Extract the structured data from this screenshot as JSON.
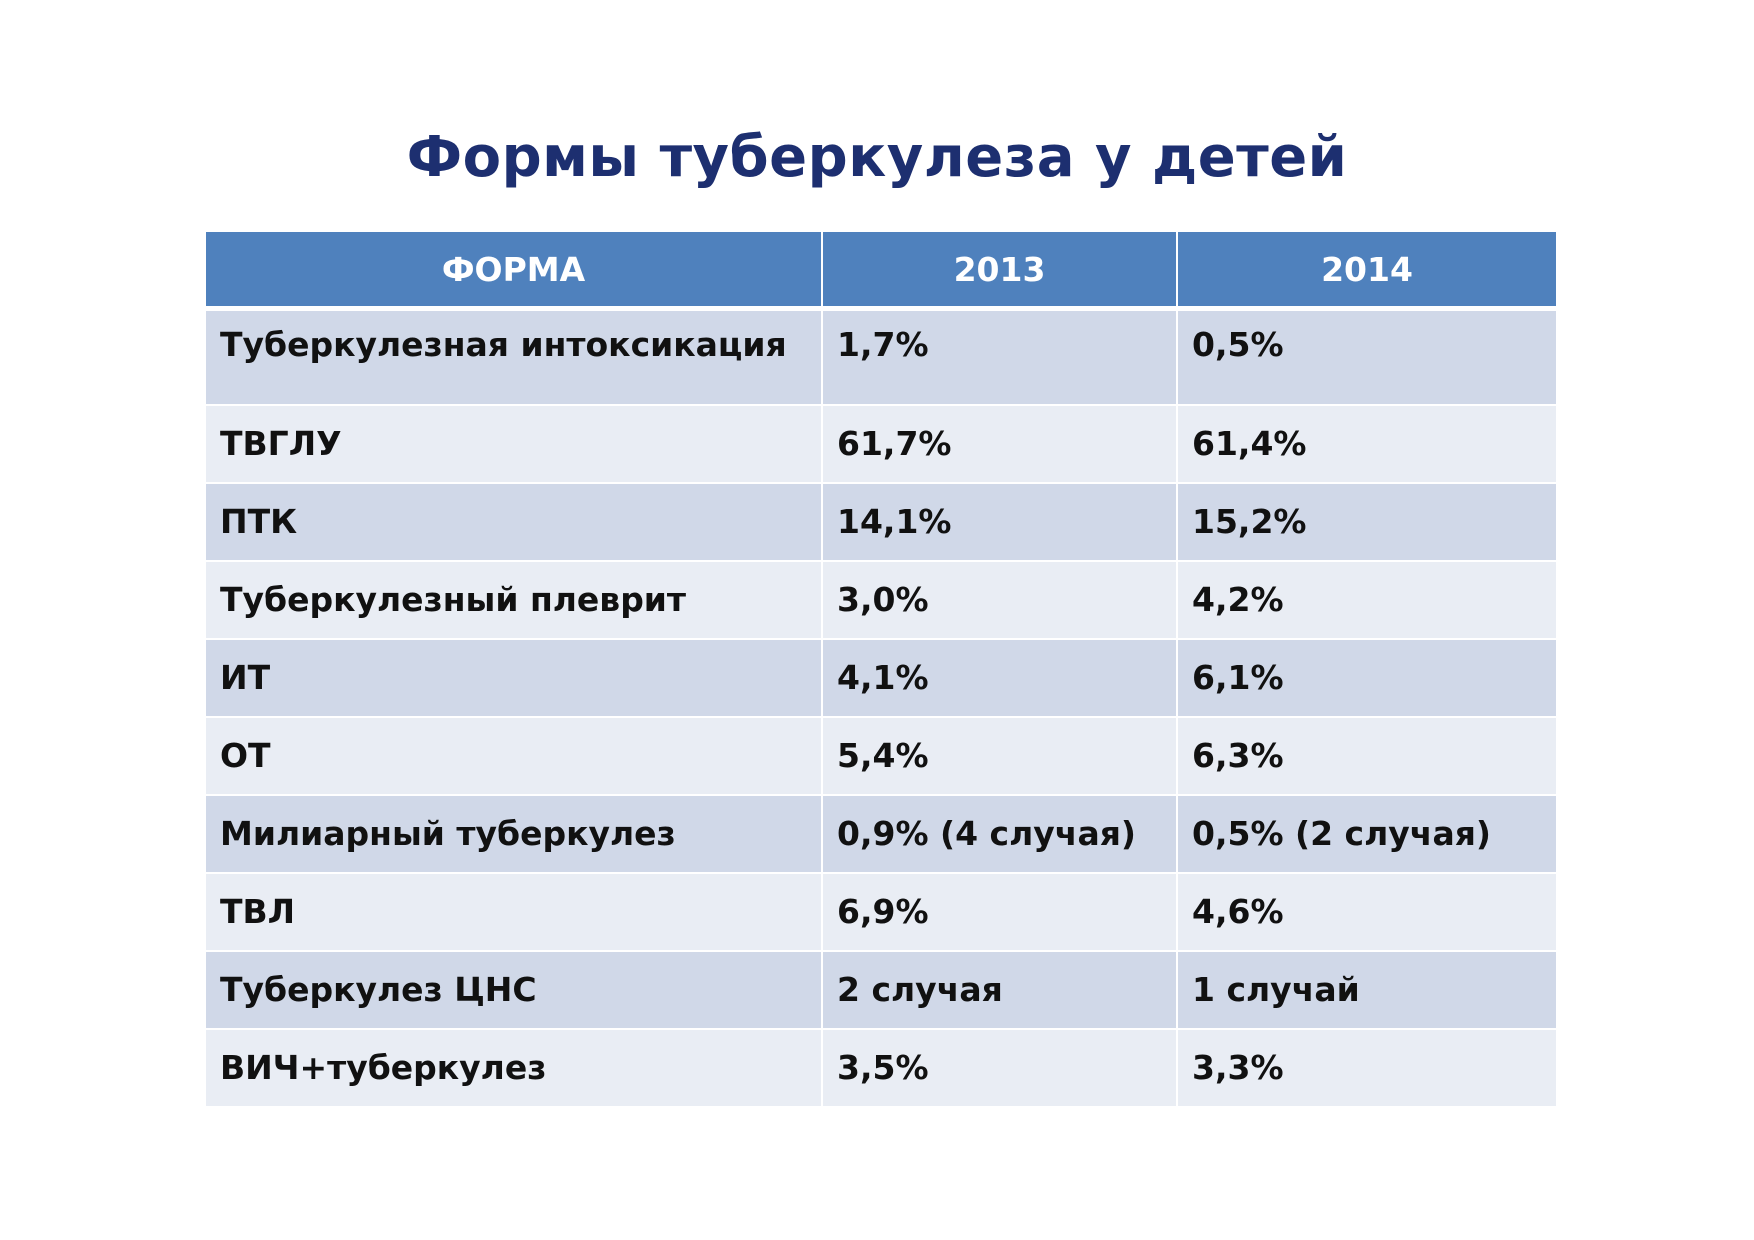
{
  "title": "Формы туберкулеза у детей",
  "table": {
    "headers": [
      "ФОРМА",
      "2013",
      "2014"
    ],
    "rows": [
      [
        "Туберкулезная интоксикация",
        "1,7%",
        "0,5%"
      ],
      [
        "ТВГЛУ",
        "61,7%",
        "61,4%"
      ],
      [
        "ПТК",
        "14,1%",
        "15,2%"
      ],
      [
        "Туберкулезный плеврит",
        "3,0%",
        "4,2%"
      ],
      [
        "ИТ",
        "4,1%",
        "6,1%"
      ],
      [
        "ОТ",
        "5,4%",
        "6,3%"
      ],
      [
        "Милиарный туберкулез",
        "0,9% (4 случая)",
        "0,5% (2 случая)"
      ],
      [
        "ТВЛ",
        "6,9%",
        "4,6%"
      ],
      [
        "Туберкулез ЦНС",
        "2 случая",
        "1 случай"
      ],
      [
        "ВИЧ+туберкулез",
        "3,5%",
        "3,3%"
      ]
    ]
  },
  "colors": {
    "title": "#1d2f70",
    "header_bg": "#4f81bd",
    "row_dark": "#d0d8e8",
    "row_light": "#e9edf4"
  }
}
